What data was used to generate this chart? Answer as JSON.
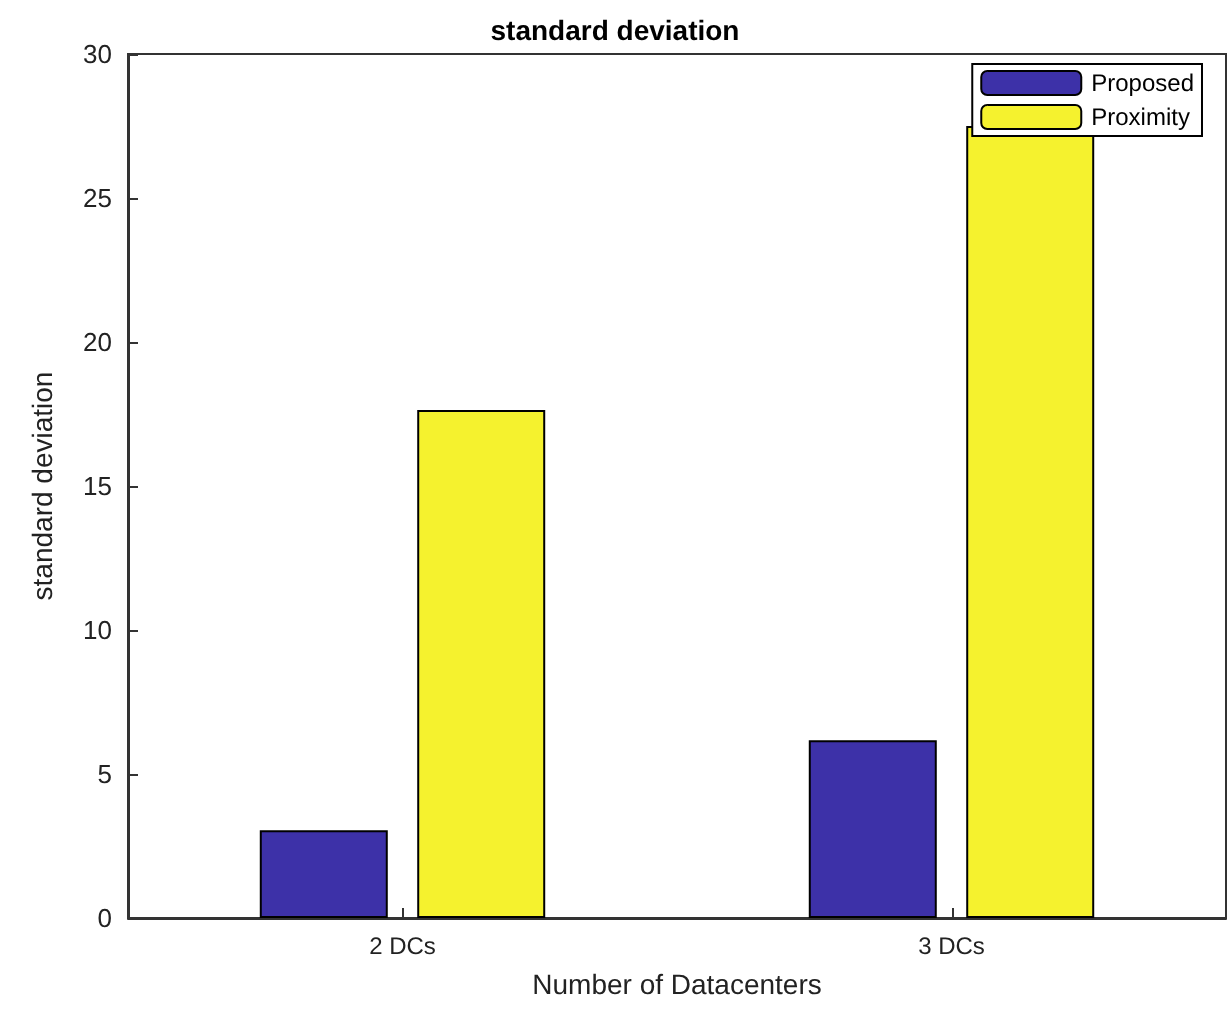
{
  "chart_data": {
    "type": "bar",
    "title": "standard deviation",
    "xlabel": "Number of Datacenters",
    "ylabel": "standard deviation",
    "categories": [
      "2 DCs",
      "3 DCs"
    ],
    "series": [
      {
        "name": "Proposed",
        "color": "#3d31a8",
        "values": [
          3.05,
          6.17
        ]
      },
      {
        "name": "Proximity",
        "color": "#f5f22e",
        "values": [
          17.64,
          27.5
        ]
      }
    ],
    "ylim": [
      0,
      30
    ],
    "yticks": [
      0,
      5,
      10,
      15,
      20,
      25,
      30
    ],
    "grid": false,
    "legend": "top right"
  }
}
